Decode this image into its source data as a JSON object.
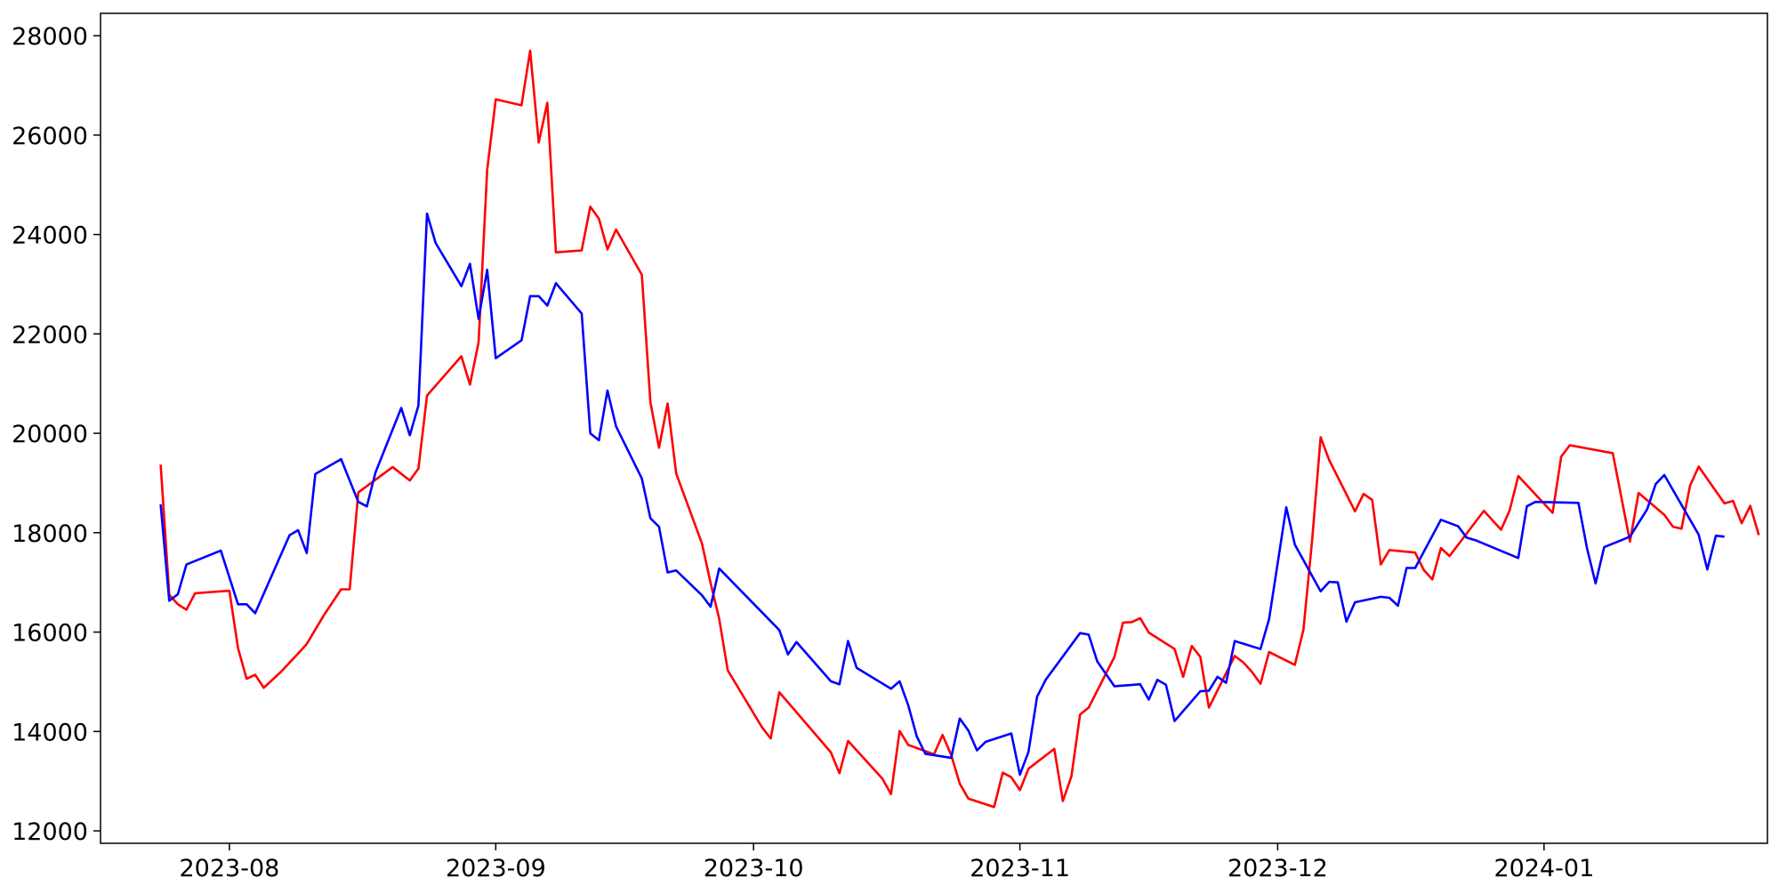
{
  "chart_data": {
    "type": "line",
    "title": "",
    "xlabel": "",
    "ylabel": "",
    "x_axis_type": "date",
    "xlim": [
      "2023-07-17",
      "2024-01-27"
    ],
    "ylim": [
      11750,
      28450
    ],
    "grid": false,
    "legend": "none",
    "x_ticks": [
      {
        "date": "2023-08-01",
        "label": "2023-08"
      },
      {
        "date": "2023-09-01",
        "label": "2023-09"
      },
      {
        "date": "2023-10-01",
        "label": "2023-10"
      },
      {
        "date": "2023-11-01",
        "label": "2023-11"
      },
      {
        "date": "2023-12-01",
        "label": "2023-12"
      },
      {
        "date": "2024-01-01",
        "label": "2024-01"
      }
    ],
    "y_ticks": [
      {
        "value": 12000,
        "label": "12000"
      },
      {
        "value": 14000,
        "label": "14000"
      },
      {
        "value": 16000,
        "label": "16000"
      },
      {
        "value": 18000,
        "label": "18000"
      },
      {
        "value": 20000,
        "label": "20000"
      },
      {
        "value": 22000,
        "label": "22000"
      },
      {
        "value": 24000,
        "label": "24000"
      },
      {
        "value": 26000,
        "label": "26000"
      },
      {
        "value": 28000,
        "label": "28000"
      }
    ],
    "series": [
      {
        "color": "#ff0000",
        "points": [
          [
            "2023-07-24",
            19370
          ],
          [
            "2023-07-25",
            16750
          ],
          [
            "2023-07-26",
            16560
          ],
          [
            "2023-07-27",
            16450
          ],
          [
            "2023-07-28",
            16780
          ],
          [
            "2023-07-31",
            16820
          ],
          [
            "2023-08-01",
            16830
          ],
          [
            "2023-08-02",
            15680
          ],
          [
            "2023-08-03",
            15060
          ],
          [
            "2023-08-04",
            15140
          ],
          [
            "2023-08-05",
            14880
          ],
          [
            "2023-08-07",
            15200
          ],
          [
            "2023-08-09",
            15570
          ],
          [
            "2023-08-10",
            15760
          ],
          [
            "2023-08-12",
            16340
          ],
          [
            "2023-08-14",
            16860
          ],
          [
            "2023-08-15",
            16860
          ],
          [
            "2023-08-16",
            18810
          ],
          [
            "2023-08-20",
            19320
          ],
          [
            "2023-08-22",
            19050
          ],
          [
            "2023-08-23",
            19290
          ],
          [
            "2023-08-24",
            20760
          ],
          [
            "2023-08-28",
            21550
          ],
          [
            "2023-08-29",
            20980
          ],
          [
            "2023-08-30",
            21830
          ],
          [
            "2023-08-31",
            25300
          ],
          [
            "2023-09-01",
            26720
          ],
          [
            "2023-09-04",
            26600
          ],
          [
            "2023-09-05",
            27700
          ],
          [
            "2023-09-06",
            25850
          ],
          [
            "2023-09-07",
            26650
          ],
          [
            "2023-09-08",
            23640
          ],
          [
            "2023-09-11",
            23680
          ],
          [
            "2023-09-12",
            24560
          ],
          [
            "2023-09-13",
            24320
          ],
          [
            "2023-09-14",
            23700
          ],
          [
            "2023-09-15",
            24100
          ],
          [
            "2023-09-18",
            23190
          ],
          [
            "2023-09-19",
            20620
          ],
          [
            "2023-09-20",
            19710
          ],
          [
            "2023-09-21",
            20600
          ],
          [
            "2023-09-22",
            19190
          ],
          [
            "2023-09-25",
            17780
          ],
          [
            "2023-09-26",
            16990
          ],
          [
            "2023-09-27",
            16270
          ],
          [
            "2023-09-28",
            15230
          ],
          [
            "2023-10-02",
            14080
          ],
          [
            "2023-10-03",
            13860
          ],
          [
            "2023-10-04",
            14790
          ],
          [
            "2023-10-10",
            13580
          ],
          [
            "2023-10-11",
            13160
          ],
          [
            "2023-10-12",
            13810
          ],
          [
            "2023-10-16",
            13050
          ],
          [
            "2023-10-17",
            12740
          ],
          [
            "2023-10-18",
            14010
          ],
          [
            "2023-10-19",
            13730
          ],
          [
            "2023-10-22",
            13540
          ],
          [
            "2023-10-23",
            13930
          ],
          [
            "2023-10-24",
            13530
          ],
          [
            "2023-10-25",
            12950
          ],
          [
            "2023-10-26",
            12650
          ],
          [
            "2023-10-29",
            12480
          ],
          [
            "2023-10-30",
            13170
          ],
          [
            "2023-10-31",
            13080
          ],
          [
            "2023-11-01",
            12820
          ],
          [
            "2023-11-02",
            13250
          ],
          [
            "2023-11-05",
            13650
          ],
          [
            "2023-11-06",
            12600
          ],
          [
            "2023-11-07",
            13100
          ],
          [
            "2023-11-08",
            14340
          ],
          [
            "2023-11-09",
            14480
          ],
          [
            "2023-11-12",
            15500
          ],
          [
            "2023-11-13",
            16190
          ],
          [
            "2023-11-14",
            16200
          ],
          [
            "2023-11-15",
            16280
          ],
          [
            "2023-11-16",
            15990
          ],
          [
            "2023-11-19",
            15660
          ],
          [
            "2023-11-20",
            15100
          ],
          [
            "2023-11-21",
            15720
          ],
          [
            "2023-11-22",
            15500
          ],
          [
            "2023-11-23",
            14480
          ],
          [
            "2023-11-26",
            15520
          ],
          [
            "2023-11-27",
            15390
          ],
          [
            "2023-11-28",
            15200
          ],
          [
            "2023-11-29",
            14960
          ],
          [
            "2023-11-30",
            15600
          ],
          [
            "2023-12-03",
            15340
          ],
          [
            "2023-12-04",
            16050
          ],
          [
            "2023-12-05",
            17830
          ],
          [
            "2023-12-06",
            19920
          ],
          [
            "2023-12-07",
            19460
          ],
          [
            "2023-12-10",
            18430
          ],
          [
            "2023-12-11",
            18780
          ],
          [
            "2023-12-12",
            18660
          ],
          [
            "2023-12-13",
            17360
          ],
          [
            "2023-12-14",
            17650
          ],
          [
            "2023-12-17",
            17600
          ],
          [
            "2023-12-18",
            17250
          ],
          [
            "2023-12-19",
            17060
          ],
          [
            "2023-12-20",
            17690
          ],
          [
            "2023-12-21",
            17530
          ],
          [
            "2023-12-25",
            18440
          ],
          [
            "2023-12-27",
            18060
          ],
          [
            "2023-12-28",
            18450
          ],
          [
            "2023-12-29",
            19140
          ],
          [
            "2024-01-02",
            18400
          ],
          [
            "2024-01-03",
            19530
          ],
          [
            "2024-01-04",
            19760
          ],
          [
            "2024-01-09",
            19600
          ],
          [
            "2024-01-11",
            17820
          ],
          [
            "2024-01-12",
            18800
          ],
          [
            "2024-01-15",
            18360
          ],
          [
            "2024-01-16",
            18120
          ],
          [
            "2024-01-17",
            18080
          ],
          [
            "2024-01-18",
            18950
          ],
          [
            "2024-01-19",
            19330
          ],
          [
            "2024-01-22",
            18590
          ],
          [
            "2024-01-23",
            18640
          ],
          [
            "2024-01-24",
            18190
          ],
          [
            "2024-01-25",
            18540
          ],
          [
            "2024-01-26",
            17950
          ]
        ]
      },
      {
        "color": "#0000ff",
        "points": [
          [
            "2023-07-24",
            18570
          ],
          [
            "2023-07-25",
            16630
          ],
          [
            "2023-07-26",
            16760
          ],
          [
            "2023-07-27",
            17360
          ],
          [
            "2023-07-31",
            17640
          ],
          [
            "2023-08-02",
            16560
          ],
          [
            "2023-08-03",
            16560
          ],
          [
            "2023-08-04",
            16380
          ],
          [
            "2023-08-08",
            17950
          ],
          [
            "2023-08-09",
            18050
          ],
          [
            "2023-08-10",
            17590
          ],
          [
            "2023-08-11",
            19180
          ],
          [
            "2023-08-14",
            19480
          ],
          [
            "2023-08-16",
            18620
          ],
          [
            "2023-08-17",
            18530
          ],
          [
            "2023-08-18",
            19210
          ],
          [
            "2023-08-21",
            20510
          ],
          [
            "2023-08-22",
            19960
          ],
          [
            "2023-08-23",
            20560
          ],
          [
            "2023-08-24",
            24420
          ],
          [
            "2023-08-25",
            23830
          ],
          [
            "2023-08-28",
            22960
          ],
          [
            "2023-08-29",
            23410
          ],
          [
            "2023-08-30",
            22300
          ],
          [
            "2023-08-31",
            23290
          ],
          [
            "2023-09-01",
            21510
          ],
          [
            "2023-09-04",
            21870
          ],
          [
            "2023-09-05",
            22760
          ],
          [
            "2023-09-06",
            22760
          ],
          [
            "2023-09-07",
            22570
          ],
          [
            "2023-09-08",
            23020
          ],
          [
            "2023-09-11",
            22410
          ],
          [
            "2023-09-12",
            20000
          ],
          [
            "2023-09-13",
            19860
          ],
          [
            "2023-09-14",
            20860
          ],
          [
            "2023-09-15",
            20140
          ],
          [
            "2023-09-18",
            19090
          ],
          [
            "2023-09-19",
            18290
          ],
          [
            "2023-09-20",
            18120
          ],
          [
            "2023-09-21",
            17200
          ],
          [
            "2023-09-22",
            17240
          ],
          [
            "2023-09-25",
            16740
          ],
          [
            "2023-09-26",
            16510
          ],
          [
            "2023-09-27",
            17280
          ],
          [
            "2023-10-04",
            16040
          ],
          [
            "2023-10-05",
            15550
          ],
          [
            "2023-10-06",
            15800
          ],
          [
            "2023-10-10",
            15010
          ],
          [
            "2023-10-11",
            14950
          ],
          [
            "2023-10-12",
            15820
          ],
          [
            "2023-10-13",
            15280
          ],
          [
            "2023-10-17",
            14860
          ],
          [
            "2023-10-18",
            15010
          ],
          [
            "2023-10-19",
            14530
          ],
          [
            "2023-10-20",
            13900
          ],
          [
            "2023-10-21",
            13550
          ],
          [
            "2023-10-24",
            13470
          ],
          [
            "2023-10-25",
            14260
          ],
          [
            "2023-10-26",
            14020
          ],
          [
            "2023-10-27",
            13620
          ],
          [
            "2023-10-28",
            13790
          ],
          [
            "2023-10-31",
            13960
          ],
          [
            "2023-11-01",
            13130
          ],
          [
            "2023-11-02",
            13590
          ],
          [
            "2023-11-03",
            14700
          ],
          [
            "2023-11-04",
            15040
          ],
          [
            "2023-11-08",
            15980
          ],
          [
            "2023-11-09",
            15950
          ],
          [
            "2023-11-10",
            15410
          ],
          [
            "2023-11-12",
            14910
          ],
          [
            "2023-11-15",
            14950
          ],
          [
            "2023-11-16",
            14640
          ],
          [
            "2023-11-17",
            15040
          ],
          [
            "2023-11-18",
            14940
          ],
          [
            "2023-11-19",
            14210
          ],
          [
            "2023-11-22",
            14810
          ],
          [
            "2023-11-23",
            14820
          ],
          [
            "2023-11-24",
            15100
          ],
          [
            "2023-11-25",
            14980
          ],
          [
            "2023-11-26",
            15820
          ],
          [
            "2023-11-29",
            15660
          ],
          [
            "2023-11-30",
            16260
          ],
          [
            "2023-12-02",
            18510
          ],
          [
            "2023-12-03",
            17760
          ],
          [
            "2023-12-06",
            16820
          ],
          [
            "2023-12-07",
            17010
          ],
          [
            "2023-12-08",
            17000
          ],
          [
            "2023-12-09",
            16210
          ],
          [
            "2023-12-10",
            16600
          ],
          [
            "2023-12-13",
            16710
          ],
          [
            "2023-12-14",
            16690
          ],
          [
            "2023-12-15",
            16530
          ],
          [
            "2023-12-16",
            17290
          ],
          [
            "2023-12-17",
            17290
          ],
          [
            "2023-12-20",
            18260
          ],
          [
            "2023-12-22",
            18130
          ],
          [
            "2023-12-23",
            17900
          ],
          [
            "2023-12-24",
            17850
          ],
          [
            "2023-12-29",
            17490
          ],
          [
            "2023-12-30",
            18530
          ],
          [
            "2023-12-31",
            18620
          ],
          [
            "2024-01-05",
            18600
          ],
          [
            "2024-01-06",
            17690
          ],
          [
            "2024-01-07",
            16980
          ],
          [
            "2024-01-08",
            17710
          ],
          [
            "2024-01-11",
            17920
          ],
          [
            "2024-01-13",
            18470
          ],
          [
            "2024-01-14",
            18980
          ],
          [
            "2024-01-15",
            19160
          ],
          [
            "2024-01-19",
            17960
          ],
          [
            "2024-01-20",
            17260
          ],
          [
            "2024-01-21",
            17940
          ],
          [
            "2024-01-22",
            17920
          ]
        ]
      }
    ]
  }
}
